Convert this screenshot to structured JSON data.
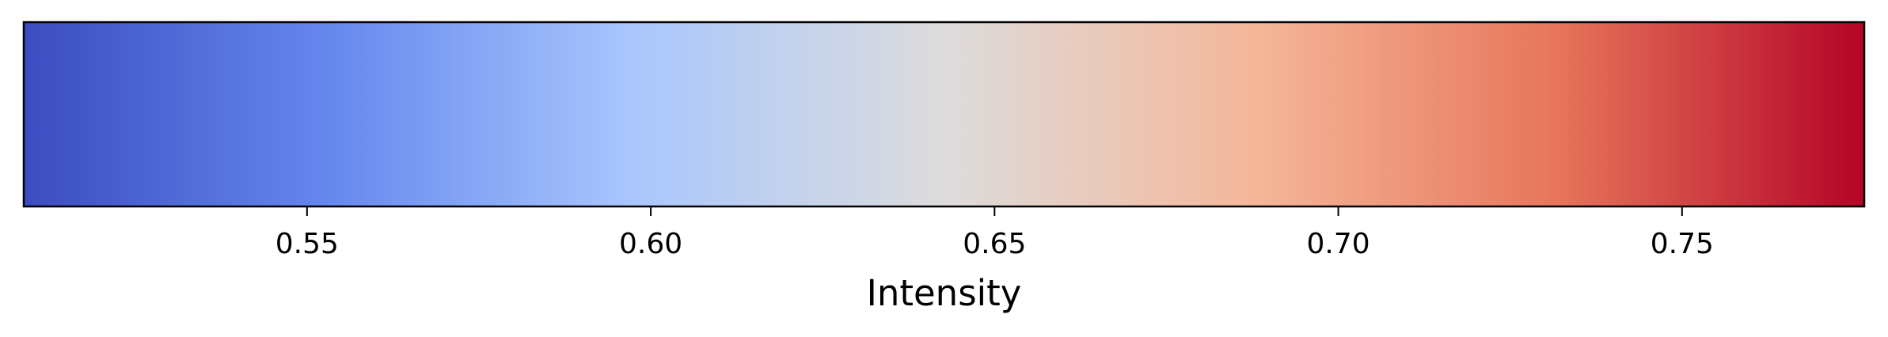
{
  "chart_data": {
    "type": "colorbar",
    "orientation": "horizontal",
    "colormap": "coolwarm",
    "color_stops": [
      "#3b4cc0",
      "#6688ee",
      "#aac7fd",
      "#dddcdc",
      "#f5b79a",
      "#e7755b",
      "#b40426"
    ],
    "xlim": [
      0.5088,
      0.7765
    ],
    "ticks": [
      0.55,
      0.6,
      0.65,
      0.7,
      0.75
    ],
    "tick_labels": [
      "0.55",
      "0.60",
      "0.65",
      "0.70",
      "0.75"
    ],
    "xlabel": "Intensity"
  }
}
